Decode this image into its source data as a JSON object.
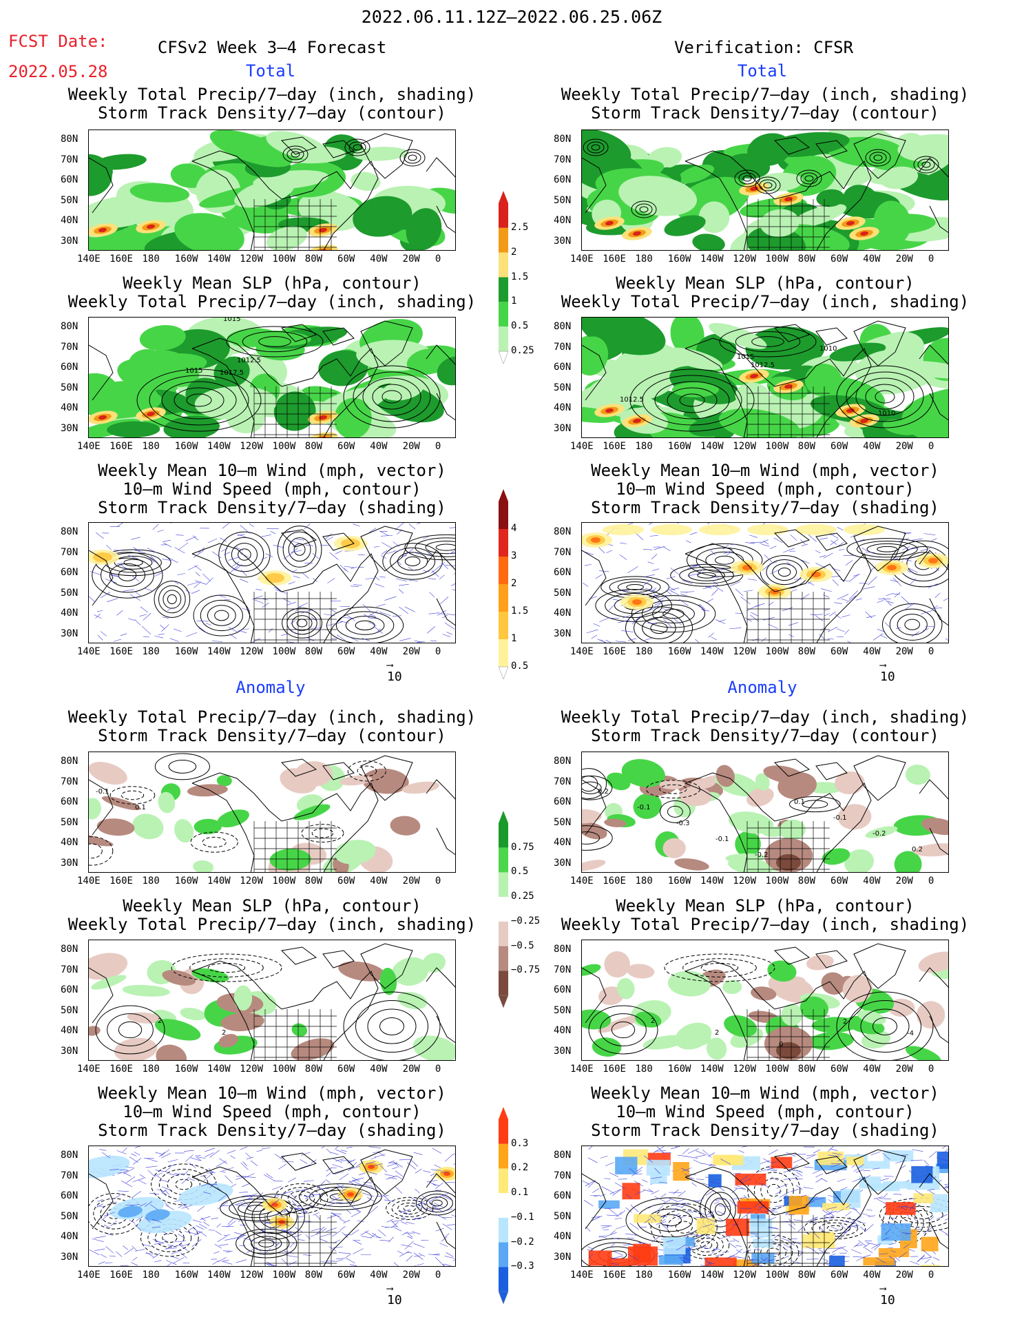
{
  "header": {
    "title": "2022.06.11.12Z–2022.06.25.06Z",
    "fcst_label": "FCST Date:",
    "fcst_date": "2022.05.28",
    "left_title": "CFSv2 Week 3–4 Forecast",
    "right_title": "Verification: CFSR",
    "section_total": "Total",
    "section_anomaly": "Anomaly"
  },
  "panel_titles": {
    "precip_storm": [
      "Weekly Total Precip/7–day (inch, shading)",
      "Storm Track Density/7–day (contour)"
    ],
    "slp_precip": [
      "Weekly Mean SLP (hPa, contour)",
      "Weekly Total Precip/7–day (inch, shading)"
    ],
    "wind_storm": [
      "Weekly Mean 10–m Wind (mph, vector)",
      "10–m Wind Speed (mph, contour)",
      "Storm Track Density/7–day (shading)"
    ]
  },
  "axes": {
    "lat_labels": [
      "80N",
      "70N",
      "60N",
      "50N",
      "40N",
      "30N"
    ],
    "lon_labels": [
      "140E",
      "160E",
      "180",
      "160W",
      "140W",
      "120W",
      "100W",
      "80W",
      "60W",
      "40W",
      "20W",
      "0"
    ]
  },
  "vector_ref": "10",
  "colorbars": {
    "precip_total": {
      "labels": [
        "2.5",
        "2",
        "1.5",
        "1",
        "0.5",
        "0.25"
      ],
      "colors": [
        "#d8221b",
        "#f29a16",
        "#fce17a",
        "#1d9b2d",
        "#47d548",
        "#b9f2b3"
      ]
    },
    "storm_total": {
      "labels": [
        "4",
        "3",
        "2",
        "1.5",
        "1",
        "0.5"
      ],
      "colors": [
        "#8b1010",
        "#e0261d",
        "#ff6a10",
        "#ff9f1a",
        "#ffc63e",
        "#fff29b"
      ]
    },
    "precip_anom": {
      "labels": [
        "0.75",
        "0.5",
        "0.25",
        "−0.25",
        "−0.5",
        "−0.75"
      ],
      "colors": [
        "#1a9a2a",
        "#4cd64a",
        "#b8f2b0",
        "#ffffff",
        "#e7cbc3",
        "#b78a7f",
        "#7b4a3c"
      ]
    },
    "storm_anom": {
      "labels": [
        "0.3",
        "0.2",
        "0.1",
        "−0.1",
        "−0.2",
        "−0.3"
      ],
      "colors": [
        "#ff3c14",
        "#ffa51a",
        "#ffe978",
        "#ffffff",
        "#b8e6ff",
        "#5aa8f5",
        "#1a5fe0"
      ]
    }
  },
  "contour_labels": {
    "slp_fcst": [
      "1015",
      "1012.5",
      "1015",
      "1017.5"
    ],
    "slp_verif": [
      "1015",
      "1012.5",
      "1010",
      "1012.5",
      "1010"
    ],
    "anom_precip_fcst": [
      "-0.1",
      "0.1"
    ],
    "anom_precip_verif": [
      "0.2",
      "-0.1",
      "-0.3",
      "-0.1",
      "-0.2",
      "0.1",
      "-0.1",
      "-0.2",
      "0.2"
    ],
    "anom_slp_fcst": [
      "2",
      "2"
    ],
    "anom_slp_verif": [
      "2",
      "2",
      "0",
      "2",
      "-4"
    ]
  }
}
